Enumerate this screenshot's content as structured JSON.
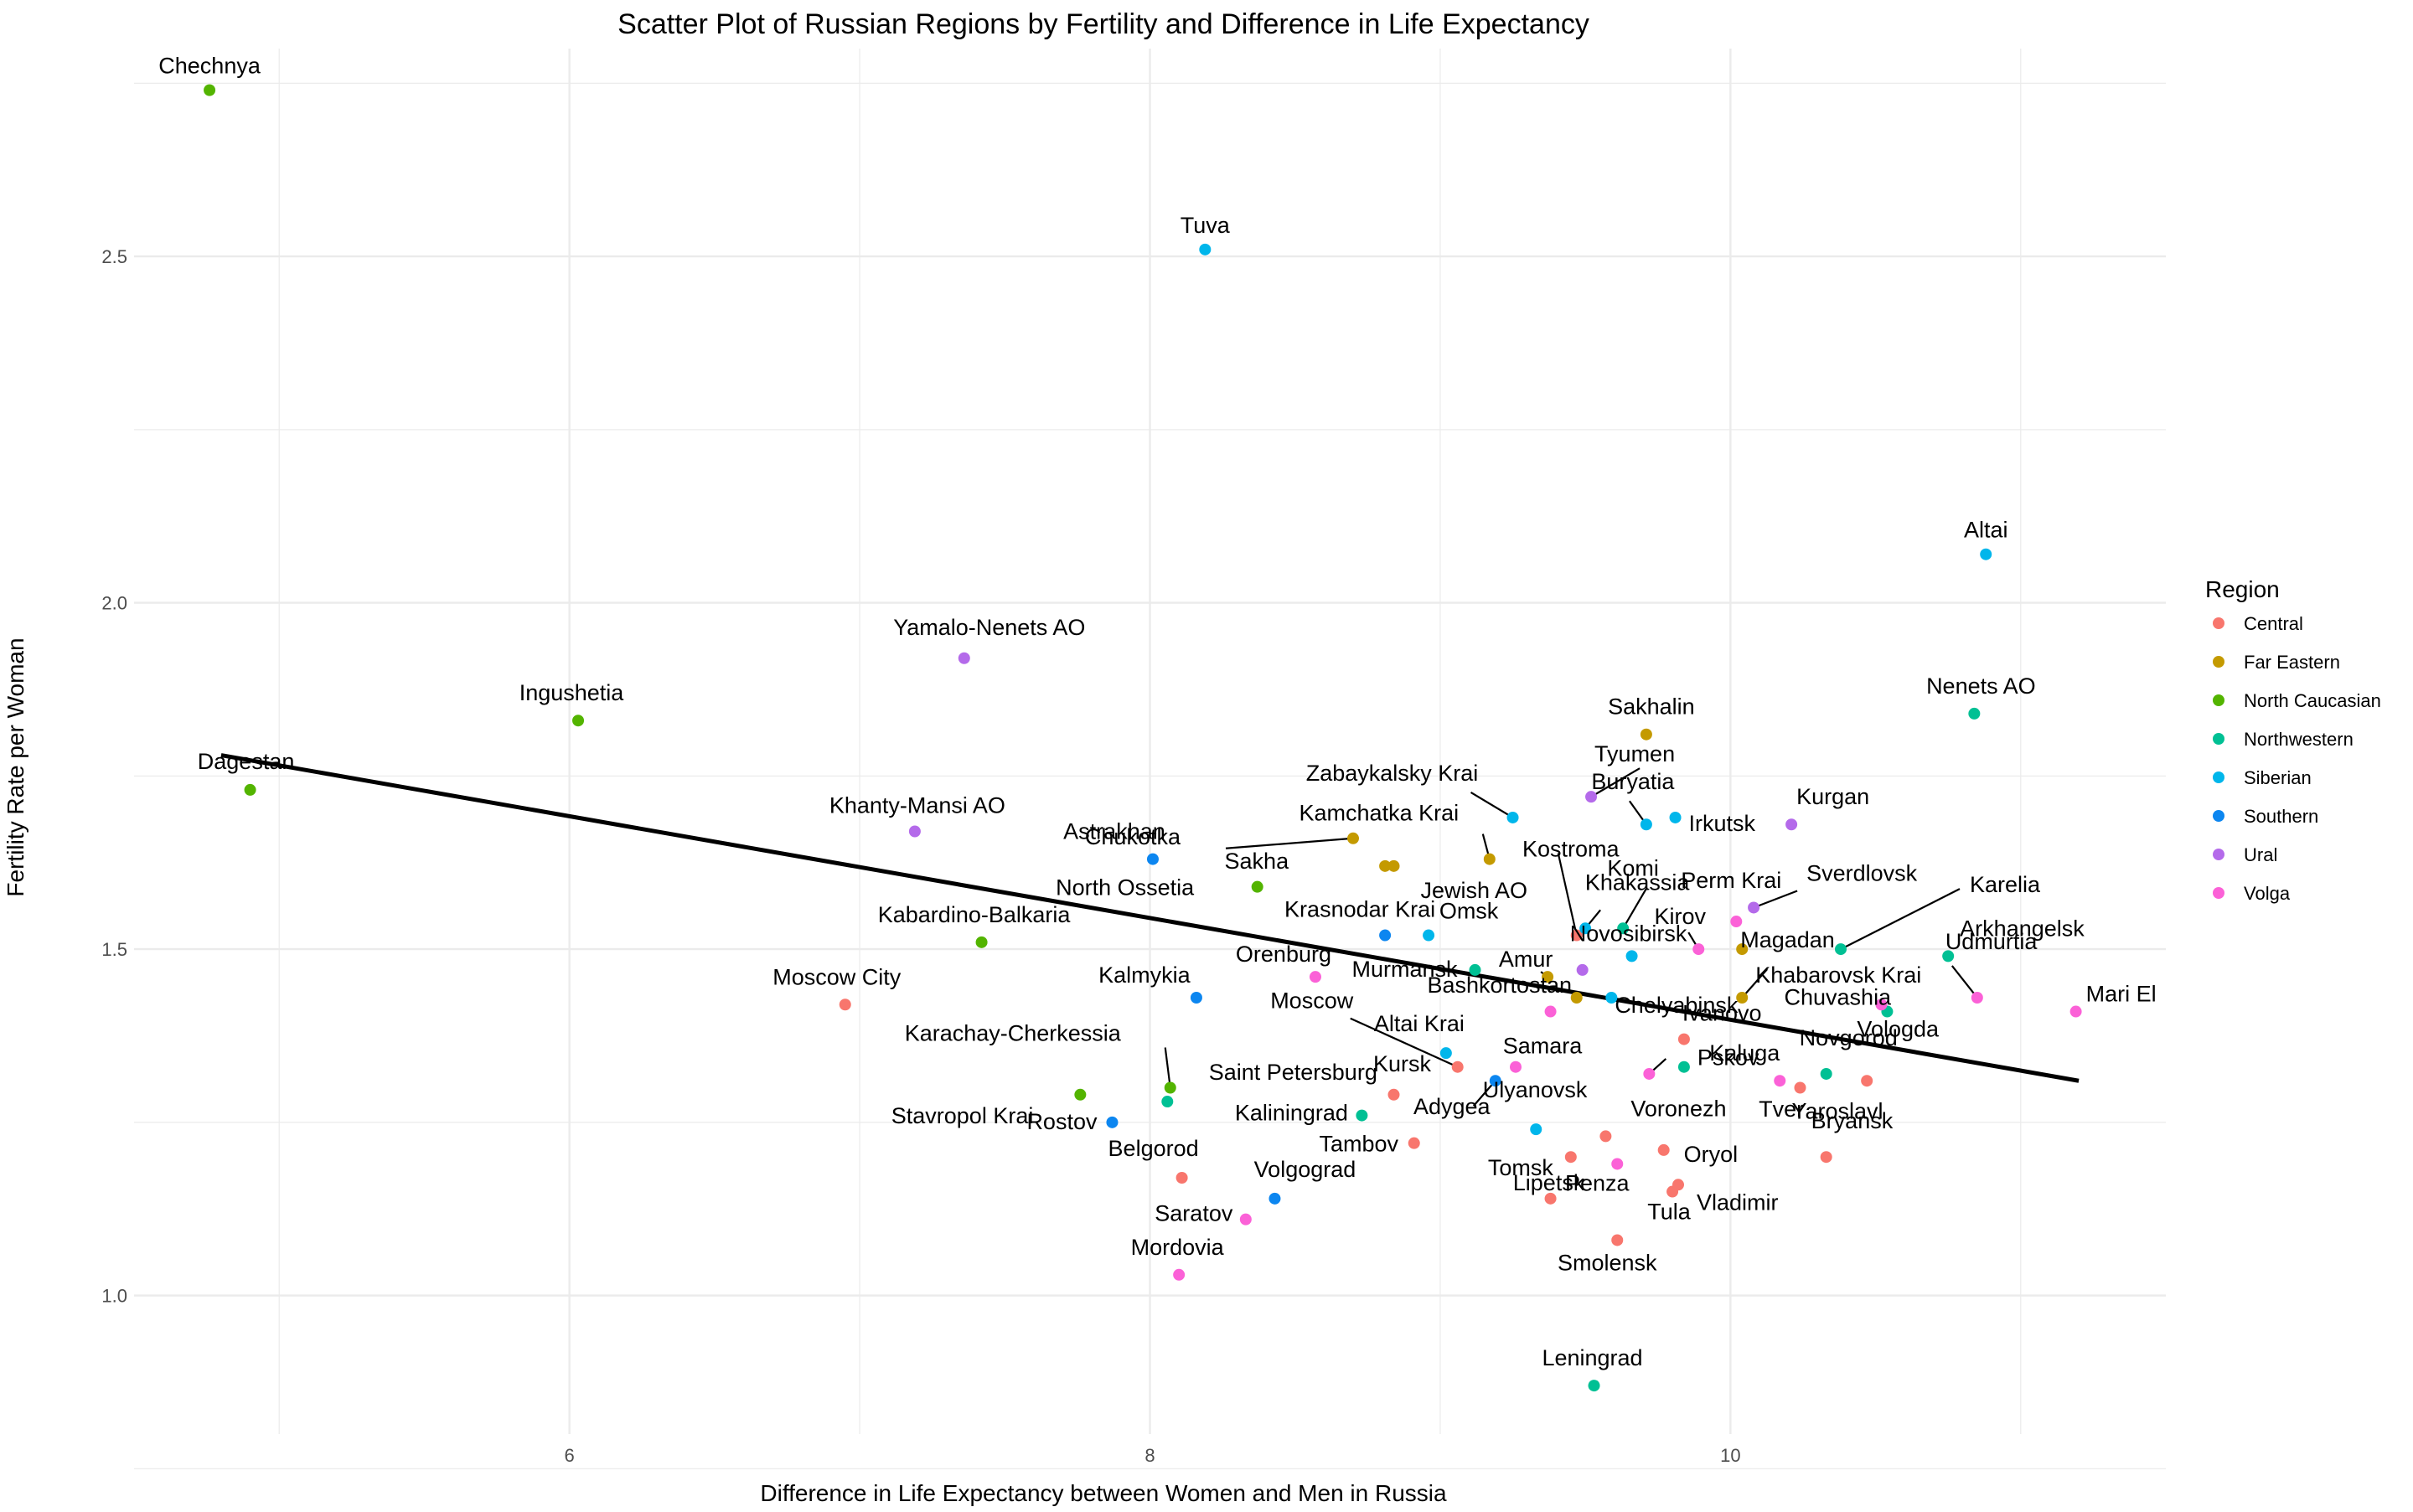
{
  "chart_data": {
    "type": "scatter",
    "title": "Scatter Plot of Russian Regions by Fertility and Difference in Life Expectancy",
    "xlabel": "Difference in Life Expectancy between Women and Men in Russia",
    "ylabel": "Fertility Rate per Woman",
    "xlim": [
      4.5,
      11.5
    ],
    "ylim": [
      0.8,
      2.8
    ],
    "x_ticks": [
      "6",
      "8",
      "10"
    ],
    "x_tick_values": [
      6,
      8,
      10
    ],
    "y_ticks": [
      "1.0",
      "1.5",
      "2.0",
      "2.5"
    ],
    "y_tick_values": [
      1.0,
      1.5,
      2.0,
      2.5
    ],
    "grid": true,
    "legend_title": "Region",
    "legend_placement": "right",
    "series": [
      {
        "name": "Central",
        "color": "#F8766D",
        "points": [
          {
            "label": "Moscow City",
            "x": 6.95,
            "y": 1.42
          },
          {
            "label": "Belgorod",
            "x": 8.11,
            "y": 1.17
          },
          {
            "label": "Kursk",
            "x": 8.84,
            "y": 1.29
          },
          {
            "label": "Tambov",
            "x": 8.91,
            "y": 1.22
          },
          {
            "label": "Moscow",
            "x": 9.06,
            "y": 1.33
          },
          {
            "label": "Kostroma",
            "x": 9.47,
            "y": 1.52
          },
          {
            "label": "Voronezh",
            "x": 9.57,
            "y": 1.23
          },
          {
            "label": "Tomsk",
            "x": 9.45,
            "y": 1.2
          },
          {
            "label": "Lipetsk",
            "x": 9.38,
            "y": 1.14
          },
          {
            "label": "Smolensk",
            "x": 9.61,
            "y": 1.08
          },
          {
            "label": "Oryol",
            "x": 9.77,
            "y": 1.21
          },
          {
            "label": "Tula",
            "x": 9.8,
            "y": 1.15
          },
          {
            "label": "Vladimir",
            "x": 9.82,
            "y": 1.16
          },
          {
            "label": "Ivanovo",
            "x": 9.84,
            "y": 1.37
          },
          {
            "label": "Yaroslavl",
            "x": 10.24,
            "y": 1.3
          },
          {
            "label": "Bryansk",
            "x": 10.33,
            "y": 1.2
          },
          {
            "label": "Tver",
            "x": 10.47,
            "y": 1.31
          }
        ]
      },
      {
        "name": "Far Eastern",
        "color": "#C49A00",
        "points": [
          {
            "label": "Chukotka",
            "x": 8.7,
            "y": 1.66
          },
          {
            "label": "Sakha",
            "x": 8.81,
            "y": 1.62
          },
          {
            "label": "Jewish AO",
            "x": 8.84,
            "y": 1.62
          },
          {
            "label": "Kamchatka Krai",
            "x": 9.17,
            "y": 1.63
          },
          {
            "label": "Amur",
            "x": 9.37,
            "y": 1.46
          },
          {
            "label": "Sakhalin",
            "x": 9.71,
            "y": 1.81
          },
          {
            "label": "Magadan",
            "x": 10.04,
            "y": 1.43
          },
          {
            "label": "Khabarovsk Krai",
            "x": 10.04,
            "y": 1.5
          },
          {
            "label": "Bashkortostan",
            "x": 9.47,
            "y": 1.43
          }
        ]
      },
      {
        "name": "North Caucasian",
        "color": "#53B400",
        "points": [
          {
            "label": "Chechnya",
            "x": 4.76,
            "y": 2.74
          },
          {
            "label": "Dagestan",
            "x": 4.9,
            "y": 1.73
          },
          {
            "label": "Ingushetia",
            "x": 6.03,
            "y": 1.83
          },
          {
            "label": "Kabardino-Balkaria",
            "x": 7.42,
            "y": 1.51
          },
          {
            "label": "Stavropol Krai",
            "x": 7.76,
            "y": 1.29
          },
          {
            "label": "Karachay-Cherkessia",
            "x": 8.07,
            "y": 1.3
          },
          {
            "label": "North Ossetia",
            "x": 8.37,
            "y": 1.59
          }
        ]
      },
      {
        "name": "Northwestern",
        "color": "#00C094",
        "points": [
          {
            "label": "Saint Petersburg",
            "x": 8.06,
            "y": 1.28
          },
          {
            "label": "Kaliningrad",
            "x": 8.73,
            "y": 1.26
          },
          {
            "label": "Murmansk",
            "x": 9.12,
            "y": 1.47
          },
          {
            "label": "Leningrad",
            "x": 9.53,
            "y": 0.87
          },
          {
            "label": "Komi",
            "x": 9.63,
            "y": 1.53
          },
          {
            "label": "Pskov",
            "x": 9.84,
            "y": 1.33
          },
          {
            "label": "Novgorod",
            "x": 10.33,
            "y": 1.32
          },
          {
            "label": "Karelia",
            "x": 10.38,
            "y": 1.5
          },
          {
            "label": "Vologda",
            "x": 10.54,
            "y": 1.41
          },
          {
            "label": "Arkhangelsk",
            "x": 10.75,
            "y": 1.49
          },
          {
            "label": "Nenets AO",
            "x": 10.84,
            "y": 1.84
          }
        ]
      },
      {
        "name": "Siberian",
        "color": "#00B6EB",
        "points": [
          {
            "label": "Tuva",
            "x": 8.19,
            "y": 2.51
          },
          {
            "label": "Omsk",
            "x": 8.96,
            "y": 1.52
          },
          {
            "label": "Altai Krai",
            "x": 9.02,
            "y": 1.35
          },
          {
            "label": "Zabaykalsky Krai",
            "x": 9.25,
            "y": 1.69
          },
          {
            "label": "Tomsk",
            "x": 9.33,
            "y": 1.24
          },
          {
            "label": "Khakassia",
            "x": 9.5,
            "y": 1.53
          },
          {
            "label": "Chelyabinsk",
            "x": 9.59,
            "y": 1.43
          },
          {
            "label": "Novosibirsk",
            "x": 9.66,
            "y": 1.49
          },
          {
            "label": "Buryatia",
            "x": 9.71,
            "y": 1.68
          },
          {
            "label": "Irkutsk",
            "x": 9.81,
            "y": 1.69
          },
          {
            "label": "Altai",
            "x": 10.88,
            "y": 2.07
          }
        ]
      },
      {
        "name": "Southern",
        "color": "#A58AFF",
        "pointColor": "#0C86F0",
        "points": [
          {
            "label": "Rostov",
            "x": 7.87,
            "y": 1.25
          },
          {
            "label": "Astrakhan",
            "x": 8.01,
            "y": 1.63
          },
          {
            "label": "Kalmykia",
            "x": 8.16,
            "y": 1.43
          },
          {
            "label": "Volgograd",
            "x": 8.43,
            "y": 1.14
          },
          {
            "label": "Krasnodar Krai",
            "x": 8.81,
            "y": 1.52
          },
          {
            "label": "Adygea",
            "x": 9.19,
            "y": 1.31
          }
        ]
      },
      {
        "name": "Ural",
        "color": "#B46AEA",
        "points": [
          {
            "label": "Khanty-Mansi AO",
            "x": 7.19,
            "y": 1.67
          },
          {
            "label": "Yamalo-Nenets AO",
            "x": 7.36,
            "y": 1.92
          },
          {
            "label": "Tyumen",
            "x": 9.52,
            "y": 1.72
          },
          {
            "label": "Chelyabinsk",
            "x": 9.49,
            "y": 1.47
          },
          {
            "label": "Sverdlovsk",
            "x": 10.08,
            "y": 1.56
          },
          {
            "label": "Kurgan",
            "x": 10.21,
            "y": 1.68
          }
        ]
      },
      {
        "name": "Volga",
        "color": "#FB61D7",
        "points": [
          {
            "label": "Mordovia",
            "x": 8.1,
            "y": 1.03
          },
          {
            "label": "Saratov",
            "x": 8.33,
            "y": 1.11
          },
          {
            "label": "Orenburg",
            "x": 8.57,
            "y": 1.46
          },
          {
            "label": "Samara",
            "x": 9.26,
            "y": 1.33
          },
          {
            "label": "Bashkortostan",
            "x": 9.38,
            "y": 1.41
          },
          {
            "label": "Penza",
            "x": 9.61,
            "y": 1.19
          },
          {
            "label": "Ulyanovsk",
            "x": 9.72,
            "y": 1.32
          },
          {
            "label": "Kirov",
            "x": 9.89,
            "y": 1.5
          },
          {
            "label": "Perm Krai",
            "x": 10.02,
            "y": 1.54
          },
          {
            "label": "Chuvashia",
            "x": 10.52,
            "y": 1.42
          },
          {
            "label": "Udmurtia",
            "x": 10.85,
            "y": 1.43
          },
          {
            "label": "Mari El",
            "x": 11.19,
            "y": 1.41
          },
          {
            "label": "Kaluga",
            "x": 10.17,
            "y": 1.31
          }
        ]
      }
    ],
    "regression_line": {
      "x": [
        4.8,
        11.2
      ],
      "y": [
        1.78,
        1.31
      ]
    }
  }
}
